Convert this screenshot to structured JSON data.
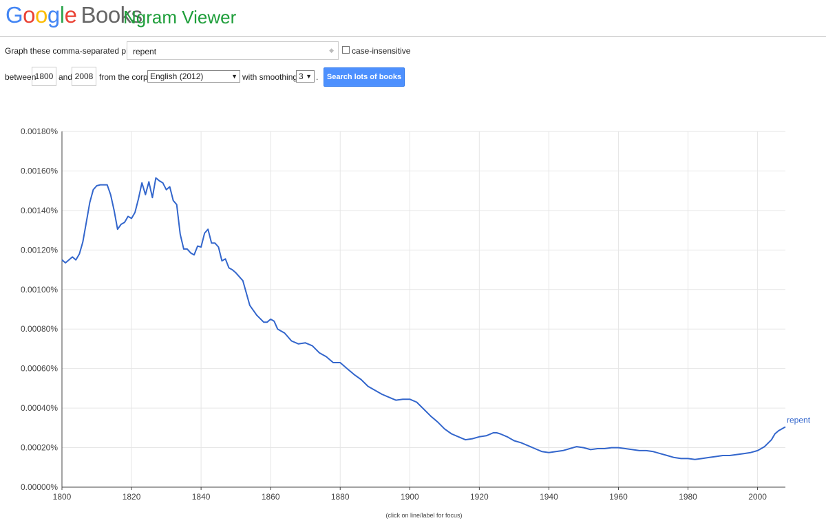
{
  "header": {
    "logo_google": [
      "G",
      "o",
      "o",
      "g",
      "l",
      "e"
    ],
    "logo_colors": [
      "#4285f4",
      "#ea4335",
      "#fbbc05",
      "#4285f4",
      "#34a853",
      "#ea4335"
    ],
    "logo_books": "Books",
    "title": "Ngram Viewer"
  },
  "query": {
    "phrases_label": "Graph these comma-separated phrases:",
    "phrases_value": "repent",
    "clear_glyph": "◆",
    "case_label": "case-insensitive",
    "between_label": "between",
    "year_start": "1800",
    "and_label": "and",
    "year_end": "2008",
    "corpus_label": "from the corpus",
    "corpus_value": "English (2012)",
    "smoothing_label": "with smoothing of",
    "smoothing_value": "3",
    "period": ".",
    "search_button": "Search lots of books"
  },
  "chart_note": "(click on line/label for focus)",
  "chart_data": {
    "type": "line",
    "title": "",
    "xlabel": "",
    "ylabel": "",
    "xlim": [
      1800,
      2008
    ],
    "ylim": [
      0,
      0.0018
    ],
    "x_ticks": [
      1800,
      1820,
      1840,
      1860,
      1880,
      1900,
      1920,
      1940,
      1960,
      1980,
      2000
    ],
    "y_ticks": [
      "0.00000%",
      "0.00020%",
      "0.00040%",
      "0.00060%",
      "0.00080%",
      "0.00100%",
      "0.00120%",
      "0.00140%",
      "0.00160%",
      "0.00180%"
    ],
    "grid": true,
    "series": [
      {
        "name": "repent",
        "color": "#3366cc",
        "x": [
          1800,
          1801,
          1802,
          1803,
          1804,
          1805,
          1806,
          1807,
          1808,
          1809,
          1810,
          1811,
          1812,
          1813,
          1814,
          1815,
          1816,
          1817,
          1818,
          1819,
          1820,
          1821,
          1822,
          1823,
          1824,
          1825,
          1826,
          1827,
          1828,
          1829,
          1830,
          1831,
          1832,
          1833,
          1834,
          1835,
          1836,
          1837,
          1838,
          1839,
          1840,
          1841,
          1842,
          1843,
          1844,
          1845,
          1846,
          1847,
          1848,
          1849,
          1850,
          1852,
          1854,
          1856,
          1858,
          1859,
          1860,
          1861,
          1862,
          1864,
          1866,
          1868,
          1870,
          1872,
          1874,
          1876,
          1878,
          1880,
          1882,
          1884,
          1886,
          1888,
          1890,
          1892,
          1894,
          1896,
          1898,
          1900,
          1902,
          1904,
          1906,
          1908,
          1910,
          1912,
          1914,
          1916,
          1918,
          1920,
          1922,
          1924,
          1925,
          1926,
          1928,
          1930,
          1932,
          1934,
          1936,
          1938,
          1940,
          1942,
          1944,
          1946,
          1948,
          1950,
          1952,
          1954,
          1956,
          1958,
          1960,
          1962,
          1964,
          1966,
          1968,
          1970,
          1972,
          1974,
          1976,
          1978,
          1980,
          1982,
          1984,
          1986,
          1988,
          1990,
          1992,
          1994,
          1996,
          1998,
          2000,
          2002,
          2004,
          2005,
          2006,
          2008
        ],
        "values": [
          0.00115,
          0.001135,
          0.00115,
          0.001165,
          0.00115,
          0.00118,
          0.00124,
          0.00134,
          0.00144,
          0.001505,
          0.001525,
          0.00153,
          0.00153,
          0.00153,
          0.00148,
          0.0014,
          0.001305,
          0.00133,
          0.00134,
          0.00137,
          0.00136,
          0.00139,
          0.00146,
          0.00154,
          0.00148,
          0.001545,
          0.001465,
          0.001565,
          0.00155,
          0.00154,
          0.001505,
          0.00152,
          0.00145,
          0.00143,
          0.00128,
          0.001205,
          0.001205,
          0.001185,
          0.001175,
          0.00122,
          0.001215,
          0.001285,
          0.001305,
          0.001235,
          0.001235,
          0.001215,
          0.001145,
          0.001155,
          0.00111,
          0.0011,
          0.001085,
          0.001045,
          0.00092,
          0.00087,
          0.000835,
          0.000835,
          0.00085,
          0.00084,
          0.0008,
          0.00078,
          0.00074,
          0.000725,
          0.00073,
          0.000715,
          0.00068,
          0.00066,
          0.00063,
          0.00063,
          0.0006,
          0.00057,
          0.000545,
          0.00051,
          0.00049,
          0.00047,
          0.000455,
          0.00044,
          0.000445,
          0.000445,
          0.00043,
          0.000395,
          0.00036,
          0.00033,
          0.000295,
          0.00027,
          0.000255,
          0.00024,
          0.000245,
          0.000255,
          0.00026,
          0.000275,
          0.000275,
          0.00027,
          0.000255,
          0.000235,
          0.000225,
          0.00021,
          0.000195,
          0.00018,
          0.000175,
          0.00018,
          0.000185,
          0.000195,
          0.000205,
          0.0002,
          0.00019,
          0.000195,
          0.000195,
          0.0002,
          0.0002,
          0.000195,
          0.00019,
          0.000185,
          0.000185,
          0.00018,
          0.00017,
          0.00016,
          0.00015,
          0.000145,
          0.000145,
          0.00014,
          0.000145,
          0.00015,
          0.000155,
          0.00016,
          0.00016,
          0.000165,
          0.00017,
          0.000175,
          0.000185,
          0.000205,
          0.00024,
          0.00027,
          0.000285,
          0.000305
        ]
      }
    ]
  }
}
